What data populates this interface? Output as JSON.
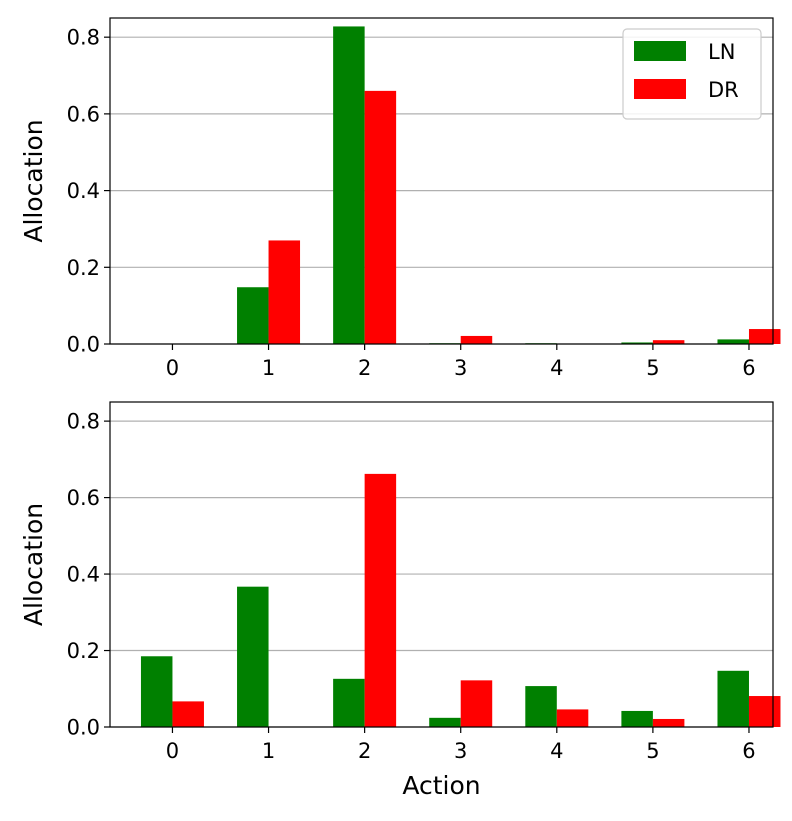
{
  "chart_data": [
    {
      "type": "bar",
      "categories": [
        "0",
        "1",
        "2",
        "3",
        "4",
        "5",
        "6"
      ],
      "series": [
        {
          "name": "LN",
          "color": "#008000",
          "values": [
            0.0,
            0.148,
            0.828,
            0.002,
            0.002,
            0.004,
            0.012
          ]
        },
        {
          "name": "DR",
          "color": "#ff0000",
          "values": [
            0.0,
            0.27,
            0.66,
            0.021,
            0.001,
            0.01,
            0.039
          ]
        }
      ],
      "xlabel": "",
      "ylabel": "Allocation",
      "ylim": [
        0,
        0.85
      ],
      "yticks": [
        "0.0",
        "0.2",
        "0.4",
        "0.6",
        "0.8"
      ],
      "grid": "horizontal",
      "legend": "top-right"
    },
    {
      "type": "bar",
      "categories": [
        "0",
        "1",
        "2",
        "3",
        "4",
        "5",
        "6"
      ],
      "series": [
        {
          "name": "LN",
          "color": "#008000",
          "values": [
            0.185,
            0.367,
            0.126,
            0.024,
            0.107,
            0.042,
            0.147
          ]
        },
        {
          "name": "DR",
          "color": "#ff0000",
          "values": [
            0.067,
            0.0,
            0.662,
            0.122,
            0.046,
            0.021,
            0.081
          ]
        }
      ],
      "xlabel": "Action",
      "ylabel": "Allocation",
      "ylim": [
        0,
        0.85
      ],
      "yticks": [
        "0.0",
        "0.2",
        "0.4",
        "0.6",
        "0.8"
      ],
      "grid": "horizontal",
      "legend": "none"
    }
  ]
}
